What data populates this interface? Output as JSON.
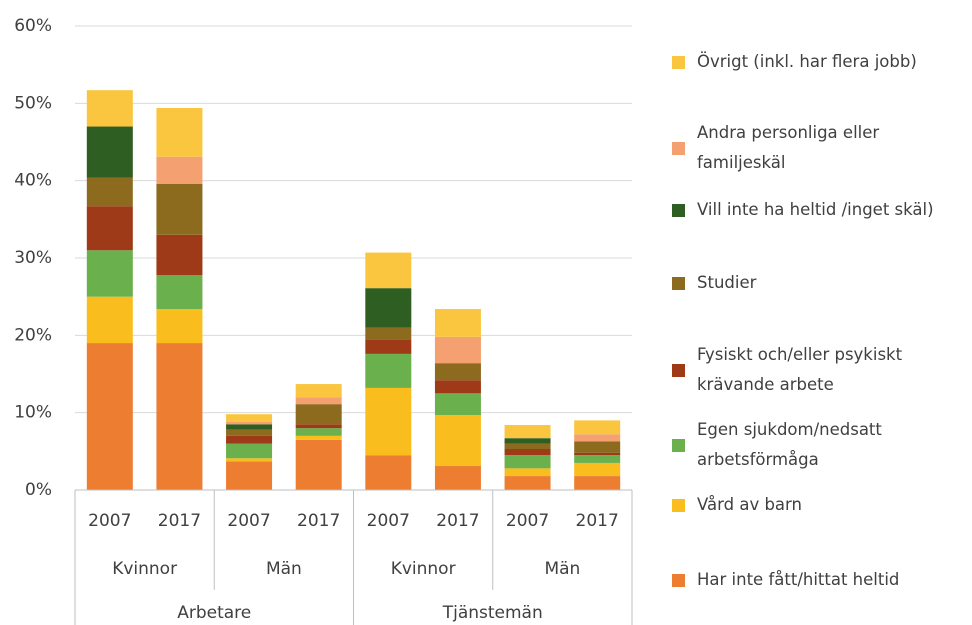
{
  "chart_data": {
    "type": "stacked_bar",
    "categories": [
      "2007",
      "2017",
      "2007",
      "2017",
      "2007",
      "2017",
      "2007",
      "2017"
    ],
    "subgroups": [
      "Kvinnor",
      "Män",
      "Kvinnor",
      "Män"
    ],
    "groups": [
      "Arbetare",
      "Tjänstemän"
    ],
    "ylim": [
      0,
      60
    ],
    "yticks": [
      {
        "value": 0,
        "label": "0%"
      },
      {
        "value": 10,
        "label": "10%"
      },
      {
        "value": 20,
        "label": "20%"
      },
      {
        "value": 30,
        "label": "30%"
      },
      {
        "value": 40,
        "label": "40%"
      },
      {
        "value": 50,
        "label": "50%"
      },
      {
        "value": 60,
        "label": "60%"
      }
    ],
    "grid": true,
    "legend": "right",
    "series": [
      {
        "name": "Har inte fått/hittat heltid",
        "color": "#ED7D31",
        "values": [
          19,
          19,
          3.7,
          6.5,
          4.5,
          3.1,
          1.8,
          1.8
        ]
      },
      {
        "name": "Vård av barn",
        "color": "#F9BE1E",
        "values": [
          6,
          4.4,
          0.4,
          0.5,
          8.7,
          6.6,
          1.0,
          1.7
        ]
      },
      {
        "name": "Egen sjukdom/nedsatt arbetsförmåga",
        "color": "#6AB04C",
        "values": [
          6,
          4.4,
          1.9,
          1.0,
          4.4,
          2.8,
          1.7,
          1.0
        ]
      },
      {
        "name": "Fysiskt och/eller psykiskt krävande arbete",
        "color": "#9E3A17",
        "values": [
          5.7,
          5.2,
          1.0,
          0.5,
          1.8,
          1.7,
          0.8,
          0.3
        ]
      },
      {
        "name": "Studier",
        "color": "#8C6A1E",
        "values": [
          3.7,
          6.6,
          0.8,
          2.6,
          1.6,
          2.2,
          0.7,
          1.5
        ]
      },
      {
        "name": "Vill inte ha heltid /inget skäl)",
        "color": "#2F5E22",
        "values": [
          6.6,
          0,
          0.7,
          0,
          5.1,
          0,
          0.7,
          0
        ]
      },
      {
        "name": "Andra personliga eller familjeskäl",
        "color": "#F4A070",
        "values": [
          0,
          3.5,
          0.3,
          0.9,
          0,
          3.4,
          0,
          0.9
        ]
      },
      {
        "name": "Övrigt (inkl. har flera jobb)",
        "color": "#FAC63F",
        "values": [
          4.7,
          6.3,
          1.0,
          1.7,
          4.6,
          3.6,
          1.7,
          1.8
        ]
      }
    ]
  }
}
